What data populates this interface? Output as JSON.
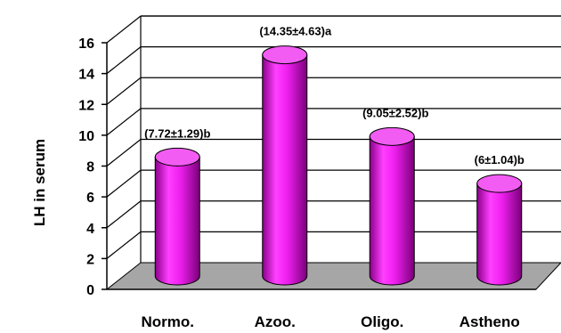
{
  "chart_data": {
    "type": "bar",
    "style": "3d-cylinder",
    "categories": [
      "Normo.",
      "Azoo.",
      "Oligo.",
      "Astheno"
    ],
    "values": [
      7.72,
      14.35,
      9.05,
      6
    ],
    "data_labels": [
      "(7.72±1.29)b",
      "(14.35±4.63)a",
      "(9.05±2.52)b",
      "(6±1.04)b"
    ],
    "ylabel": "LH in serum",
    "xlabel": "",
    "ylim": [
      0,
      16
    ],
    "yticks": [
      "0",
      "2",
      "4",
      "6",
      "8",
      "10",
      "12",
      "14",
      "16"
    ],
    "grid": true,
    "legend": "none",
    "colors": {
      "bar": "#e000e0",
      "floor": "#a6a6a6",
      "grid": "#000000"
    }
  }
}
